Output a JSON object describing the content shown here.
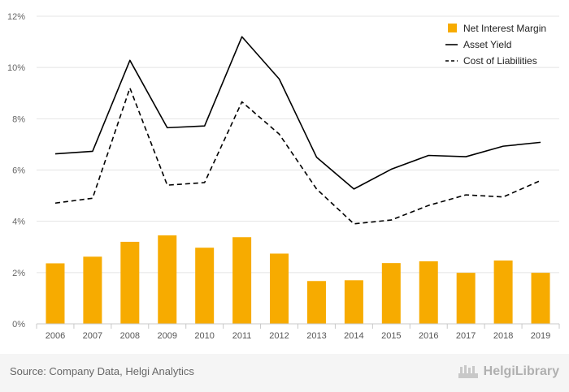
{
  "chart_data": {
    "type": "bar",
    "categories": [
      "2006",
      "2007",
      "2008",
      "2009",
      "2010",
      "2011",
      "2012",
      "2013",
      "2014",
      "2015",
      "2016",
      "2017",
      "2018",
      "2019"
    ],
    "series": [
      {
        "name": "Net Interest Margin",
        "type": "bar",
        "color": "#f7ab00",
        "values": [
          2.36,
          2.62,
          3.2,
          3.45,
          2.97,
          3.38,
          2.74,
          1.67,
          1.7,
          2.37,
          2.44,
          1.99,
          2.47,
          1.99
        ]
      },
      {
        "name": "Asset Yield",
        "type": "line",
        "color": "#000000",
        "dash": "solid",
        "values": [
          6.63,
          6.73,
          10.28,
          7.65,
          7.72,
          11.2,
          9.55,
          6.5,
          5.26,
          6.03,
          6.57,
          6.52,
          6.93,
          7.08
        ]
      },
      {
        "name": "Cost of Liabilities",
        "type": "line",
        "color": "#000000",
        "dash": "dashed",
        "values": [
          4.71,
          4.9,
          9.2,
          5.41,
          5.51,
          8.66,
          7.4,
          5.26,
          3.9,
          4.05,
          4.62,
          5.03,
          4.95,
          5.59
        ]
      }
    ],
    "y_ticks": [
      "0%",
      "2%",
      "4%",
      "6%",
      "8%",
      "10%",
      "12%"
    ],
    "ylim": [
      0,
      12
    ],
    "grid": "horizontal",
    "legend_position": "top-right"
  },
  "footer": {
    "source": "Source: Company Data, Helgi Analytics",
    "brand": "HelgiLibrary"
  }
}
